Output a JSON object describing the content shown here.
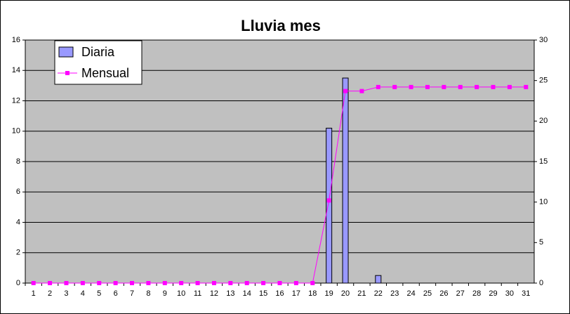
{
  "chart_data": {
    "type": "bar",
    "title": "Lluvia mes",
    "categories": [
      1,
      2,
      3,
      4,
      5,
      6,
      7,
      8,
      9,
      10,
      11,
      12,
      13,
      14,
      15,
      16,
      17,
      18,
      19,
      20,
      21,
      22,
      23,
      24,
      25,
      26,
      27,
      28,
      29,
      30,
      31
    ],
    "series": [
      {
        "name": "Diaria",
        "type": "bar",
        "color": "#9999ff",
        "values": [
          0,
          0,
          0,
          0,
          0,
          0,
          0,
          0,
          0,
          0,
          0,
          0,
          0,
          0,
          0,
          0,
          0,
          0,
          10.2,
          13.5,
          0,
          0.5,
          0,
          0,
          0,
          0,
          0,
          0,
          0,
          0,
          0
        ]
      },
      {
        "name": "Mensual",
        "type": "line",
        "axis": "y2",
        "color": "#ff00ff",
        "values": [
          0,
          0,
          0,
          0,
          0,
          0,
          0,
          0,
          0,
          0,
          0,
          0,
          0,
          0,
          0,
          0,
          0,
          0,
          10.2,
          23.7,
          23.7,
          24.2,
          24.2,
          24.2,
          24.2,
          24.2,
          24.2,
          24.2,
          24.2,
          24.2,
          24.2
        ]
      }
    ],
    "ylim": [
      0,
      16
    ],
    "yticks": [
      0,
      2,
      4,
      6,
      8,
      10,
      12,
      14,
      16
    ],
    "y2lim": [
      0,
      30
    ],
    "y2ticks": [
      0,
      5,
      10,
      15,
      20,
      25,
      30
    ],
    "grid": true,
    "legend": "top-left"
  }
}
